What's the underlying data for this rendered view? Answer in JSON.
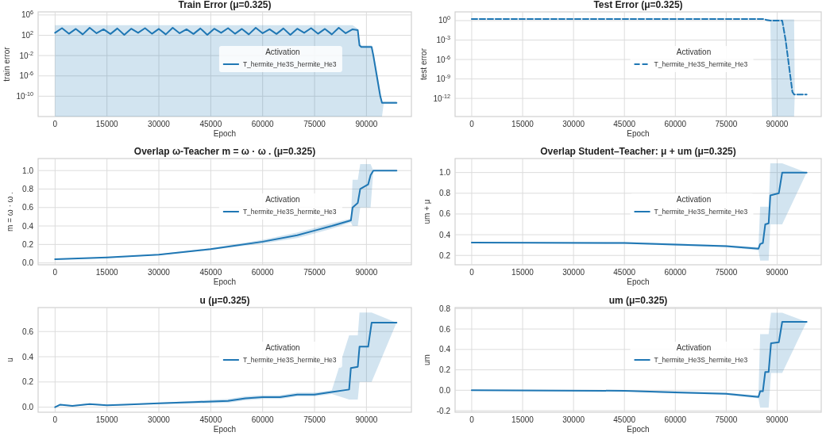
{
  "chart_data": [
    {
      "type": "line",
      "title": "Train Error  (μ=0.325)",
      "xlabel": "Epoch",
      "ylabel": "train error",
      "legend_title": "Activation",
      "legend": "right",
      "grid": true,
      "log": "y",
      "marker": "none",
      "line_style": "solid",
      "xlim": [
        -4900,
        103000
      ],
      "xticks": [
        0,
        15000,
        30000,
        45000,
        60000,
        75000,
        90000
      ],
      "ylim": [
        1e-14,
        4000000
      ],
      "yticks": [
        {
          "value": 1000000.0,
          "label": "10$^{6}$"
        },
        {
          "value": 100,
          "label": "10$^{2}$"
        },
        {
          "value": 0.01,
          "label": "10$^{-2}$"
        },
        {
          "value": 1e-06,
          "label": "10$^{-6}$"
        },
        {
          "value": 1e-10,
          "label": "10$^{-10}$"
        }
      ],
      "series": [
        {
          "name": "T_hermite_He3S_hermite_He3",
          "color": "#1f77b4",
          "x": [
            0,
            2000,
            4000,
            6000,
            8000,
            10000,
            12000,
            14000,
            16000,
            18000,
            20000,
            22000,
            24000,
            26000,
            28000,
            30000,
            32000,
            34000,
            36000,
            38000,
            40000,
            42000,
            44000,
            46000,
            48000,
            50000,
            52000,
            54000,
            56000,
            58000,
            60000,
            62000,
            64000,
            66000,
            68000,
            70000,
            72000,
            74000,
            76000,
            78000,
            80000,
            82000,
            84000,
            86000,
            87500,
            88000,
            88500,
            91500,
            92000,
            93000,
            94000,
            94500,
            95000,
            98700
          ],
          "values": [
            300,
            2500,
            200,
            1800,
            150,
            3000,
            250,
            1500,
            180,
            2200,
            120,
            2000,
            300,
            2500,
            200,
            1800,
            150,
            3000,
            250,
            1500,
            180,
            2200,
            120,
            2000,
            300,
            2500,
            200,
            1800,
            150,
            3000,
            250,
            1500,
            180,
            2200,
            120,
            2000,
            300,
            2500,
            200,
            1800,
            150,
            3000,
            250,
            1500,
            1000,
            1,
            0.5,
            0.5,
            0.01,
            1e-06,
            1e-10,
            5e-12,
            5e-12,
            5e-12
          ],
          "upper": [
            10000,
            10000,
            10000,
            10000,
            10000,
            10000,
            10000,
            10000,
            10000,
            10000,
            10000,
            10000,
            10000,
            10000,
            10000,
            10000,
            10000,
            10000,
            10000,
            10000,
            10000,
            10000,
            10000,
            10000,
            10000,
            10000,
            10000,
            10000,
            10000,
            10000,
            10000,
            10000,
            10000,
            10000,
            10000,
            10000,
            10000,
            10000,
            10000,
            10000,
            10000,
            10000,
            10000,
            10000,
            2000,
            2,
            1,
            1,
            0.05,
            1e-05,
            1e-09,
            1e-11,
            1e-11,
            1e-11
          ],
          "lower": [
            1e-14,
            1e-14,
            1e-14,
            1e-14,
            1e-14,
            1e-14,
            1e-14,
            1e-14,
            1e-14,
            1e-14,
            1e-14,
            1e-14,
            1e-14,
            1e-14,
            1e-14,
            1e-14,
            1e-14,
            1e-14,
            1e-14,
            1e-14,
            1e-14,
            1e-14,
            1e-14,
            1e-14,
            1e-14,
            1e-14,
            1e-14,
            1e-14,
            1e-14,
            1e-14,
            1e-14,
            1e-14,
            1e-14,
            1e-14,
            1e-14,
            1e-14,
            1e-14,
            1e-14,
            1e-14,
            1e-14,
            1e-14,
            1e-14,
            1e-14,
            1e-14,
            1e-14,
            1e-14,
            1e-14,
            1e-14,
            1e-14,
            1e-14,
            1e-14,
            1e-14,
            4e-12,
            4e-12
          ]
        }
      ]
    },
    {
      "type": "line",
      "title": "Test Error  (μ=0.325)",
      "xlabel": "Epoch",
      "ylabel": "test error",
      "legend_title": "Activation",
      "legend": "right",
      "grid": true,
      "log": "y",
      "marker": "none",
      "line_style": "dashed",
      "xlim": [
        -4900,
        103000
      ],
      "xticks": [
        0,
        15000,
        30000,
        45000,
        60000,
        75000,
        90000
      ],
      "ylim": [
        1.6e-15,
        22
      ],
      "yticks": [
        {
          "value": 1,
          "label": "10$^{0}$"
        },
        {
          "value": 0.001,
          "label": "10$^{-3}$"
        },
        {
          "value": 1e-06,
          "label": "10$^{-6}$"
        },
        {
          "value": 1e-09,
          "label": "10$^{-9}$"
        },
        {
          "value": 1e-12,
          "label": "10$^{-12}$"
        }
      ],
      "series": [
        {
          "name": "T_hermite_He3S_hermite_He3",
          "color": "#1f77b4",
          "x": [
            0,
            86000,
            87000,
            88000,
            88500,
            91500,
            92500,
            93500,
            94500,
            95000,
            95200,
            98700
          ],
          "values": [
            1.8,
            1.8,
            1.2,
            1,
            1,
            1,
            0.001,
            1e-07,
            1e-11,
            4e-12,
            4e-12,
            4e-12
          ],
          "upper": [
            2,
            2,
            1.5,
            1.5,
            1.5,
            1.5,
            1.5,
            1.5,
            1.5,
            1.5,
            5e-12,
            5e-12
          ],
          "lower": [
            1.6,
            1.6,
            0.8,
            0.8,
            1.6e-15,
            1.6e-15,
            1.6e-15,
            1.6e-15,
            1.6e-15,
            1.6e-15,
            3.5e-12,
            3.5e-12
          ]
        }
      ]
    },
    {
      "type": "line",
      "title": "Overlap ω-Teacher m = ω · ω .   (μ=0.325)",
      "xlabel": "Epoch",
      "ylabel": "m = ω · ω .",
      "legend_title": "Activation",
      "legend": "right",
      "grid": true,
      "marker": "none",
      "line_style": "solid",
      "xlim": [
        -4900,
        103000
      ],
      "xticks": [
        0,
        15000,
        30000,
        45000,
        60000,
        75000,
        90000
      ],
      "ylim": [
        -0.02,
        1.13
      ],
      "yticks": [
        {
          "value": 0,
          "label": "0.0"
        },
        0.2,
        0.4,
        0.6,
        0.8,
        {
          "value": 1,
          "label": "1.0"
        }
      ],
      "series": [
        {
          "name": "T_hermite_He3S_hermite_He3",
          "color": "#1f77b4",
          "x": [
            0,
            15000,
            30000,
            45000,
            60000,
            70000,
            75000,
            80000,
            85500,
            86000,
            87500,
            88200,
            90500,
            91200,
            92000,
            98700
          ],
          "values": [
            0.04,
            0.06,
            0.09,
            0.15,
            0.23,
            0.3,
            0.35,
            0.4,
            0.46,
            0.6,
            0.65,
            0.8,
            0.85,
            0.95,
            1,
            1
          ],
          "upper": [
            0.045,
            0.06,
            0.095,
            0.16,
            0.25,
            0.33,
            0.38,
            0.43,
            0.48,
            0.9,
            0.9,
            1.07,
            1.07,
            1.07,
            1.0,
            1.0
          ],
          "lower": [
            0.035,
            0.05,
            0.085,
            0.14,
            0.21,
            0.27,
            0.32,
            0.37,
            0.44,
            0.4,
            0.4,
            0.6,
            0.6,
            0.6,
            1.0,
            1.0
          ]
        }
      ]
    },
    {
      "type": "line",
      "title": "Overlap Student–Teacher: μ + um  (μ=0.325)",
      "xlabel": "Epoch",
      "ylabel": "um + μ",
      "legend_title": "Activation",
      "legend": "right",
      "grid": true,
      "marker": "none",
      "line_style": "solid",
      "xlim": [
        -4900,
        103000
      ],
      "xticks": [
        0,
        15000,
        30000,
        45000,
        60000,
        75000,
        90000
      ],
      "ylim": [
        0.11,
        1.135
      ],
      "yticks": [
        0.2,
        0.4,
        0.6,
        0.8,
        {
          "value": 1,
          "label": "1.0"
        }
      ],
      "series": [
        {
          "name": "T_hermite_He3S_hermite_He3",
          "color": "#1f77b4",
          "x": [
            0,
            45000,
            60000,
            75000,
            84500,
            85000,
            85800,
            86500,
            87500,
            88000,
            90500,
            91500,
            98700
          ],
          "values": [
            0.325,
            0.32,
            0.305,
            0.29,
            0.265,
            0.31,
            0.32,
            0.5,
            0.51,
            0.78,
            0.8,
            1,
            1
          ],
          "upper": [
            0.33,
            0.33,
            0.315,
            0.3,
            0.28,
            0.67,
            0.67,
            0.67,
            0.67,
            1.09,
            1.09,
            1.09,
            1.0
          ],
          "lower": [
            0.32,
            0.31,
            0.295,
            0.28,
            0.25,
            0.15,
            0.15,
            0.15,
            0.15,
            0.5,
            0.5,
            0.5,
            1.0
          ]
        }
      ]
    },
    {
      "type": "line",
      "title": "u   (μ=0.325)",
      "xlabel": "Epoch",
      "ylabel": "u",
      "legend_title": "Activation",
      "legend": "right",
      "grid": true,
      "marker": "none",
      "line_style": "solid",
      "xlim": [
        -4900,
        103000
      ],
      "xticks": [
        0,
        15000,
        30000,
        45000,
        60000,
        75000,
        90000
      ],
      "ylim": [
        -0.04,
        0.79
      ],
      "yticks": [
        {
          "value": 0,
          "label": "0.0"
        },
        0.2,
        0.4,
        0.6
      ],
      "series": [
        {
          "name": "T_hermite_He3S_hermite_He3",
          "color": "#1f77b4",
          "x": [
            0,
            1500,
            5000,
            10000,
            15000,
            20000,
            30000,
            40000,
            50000,
            55000,
            60000,
            65000,
            70000,
            75000,
            80000,
            85000,
            85500,
            87500,
            88000,
            90500,
            91500,
            98700
          ],
          "values": [
            0,
            0.02,
            0.01,
            0.025,
            0.015,
            0.02,
            0.03,
            0.04,
            0.05,
            0.07,
            0.08,
            0.08,
            0.1,
            0.1,
            0.12,
            0.14,
            0.31,
            0.32,
            0.48,
            0.48,
            0.67,
            0.67
          ],
          "upper": [
            0.005,
            0.025,
            0.015,
            0.03,
            0.02,
            0.025,
            0.035,
            0.05,
            0.065,
            0.085,
            0.095,
            0.095,
            0.115,
            0.115,
            0.135,
            0.57,
            0.57,
            0.57,
            0.75,
            0.75,
            0.75,
            0.67
          ],
          "lower": [
            -0.005,
            0.015,
            0.005,
            0.02,
            0.01,
            0.015,
            0.025,
            0.03,
            0.035,
            0.055,
            0.065,
            0.065,
            0.085,
            0.085,
            0.105,
            0.06,
            0.06,
            0.06,
            0.2,
            0.2,
            0.2,
            0.67
          ]
        }
      ]
    },
    {
      "type": "line",
      "title": "um  (μ=0.325)",
      "xlabel": "Epoch",
      "ylabel": "um",
      "legend_title": "Activation",
      "legend": "right",
      "grid": true,
      "marker": "none",
      "line_style": "solid",
      "xlim": [
        -4900,
        103000
      ],
      "xticks": [
        0,
        15000,
        30000,
        45000,
        60000,
        75000,
        90000
      ],
      "ylim": [
        -0.215,
        0.81
      ],
      "yticks": [
        -0.2,
        {
          "value": 0,
          "label": "0.0"
        },
        0.2,
        0.4,
        0.6,
        0.8
      ],
      "series": [
        {
          "name": "T_hermite_He3S_hermite_He3",
          "color": "#1f77b4",
          "x": [
            0,
            45000,
            60000,
            75000,
            84500,
            85000,
            85800,
            86500,
            87500,
            88200,
            90500,
            91500,
            98700
          ],
          "values": [
            0,
            -0.005,
            -0.02,
            -0.035,
            -0.065,
            -0.01,
            -0.01,
            0.18,
            0.18,
            0.46,
            0.47,
            0.67,
            0.67
          ],
          "upper": [
            0.005,
            0,
            -0.01,
            -0.025,
            -0.05,
            0.55,
            0.55,
            0.55,
            0.55,
            0.76,
            0.76,
            0.76,
            0.67
          ],
          "lower": [
            -0.005,
            -0.01,
            -0.03,
            -0.045,
            -0.08,
            -0.17,
            -0.17,
            -0.17,
            -0.17,
            0.17,
            0.17,
            0.17,
            0.67
          ]
        }
      ]
    }
  ]
}
